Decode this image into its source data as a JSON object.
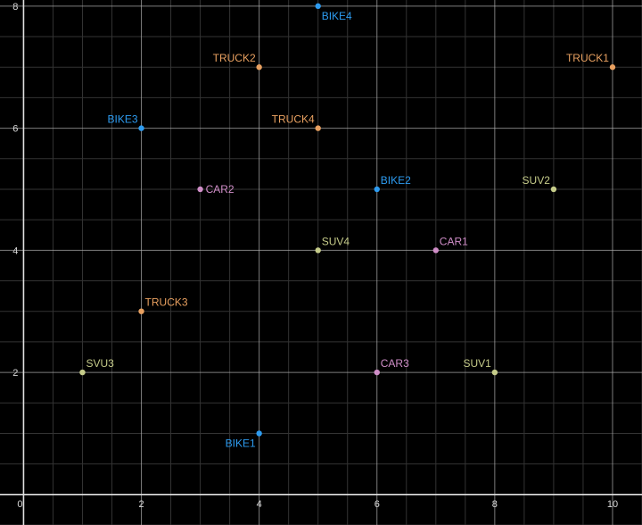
{
  "chart_data": {
    "type": "scatter",
    "title": "",
    "xlabel": "",
    "ylabel": "",
    "xlim": [
      -0.4,
      10.5
    ],
    "ylim": [
      -0.5,
      8.1
    ],
    "grid": true,
    "minor_grid_step": 0.5,
    "x_ticks": [
      "0",
      "2",
      "4",
      "6",
      "8",
      "10"
    ],
    "y_ticks": [
      "2",
      "4",
      "6",
      "8"
    ],
    "background": "#000000",
    "colors": {
      "bike": "#2d9bf0",
      "truck": "#e8a060",
      "car": "#d08ec8",
      "suv": "#c6cc8a",
      "major_grid": "#b0b0b0",
      "minor_grid": "#333333"
    },
    "points": [
      {
        "label": "BIKE4",
        "group": "bike",
        "x": 5,
        "y": 8,
        "anchor": "below-right"
      },
      {
        "label": "TRUCK2",
        "group": "truck",
        "x": 4,
        "y": 7,
        "anchor": "above-left"
      },
      {
        "label": "TRUCK1",
        "group": "truck",
        "x": 10,
        "y": 7,
        "anchor": "above-left"
      },
      {
        "label": "BIKE3",
        "group": "bike",
        "x": 2,
        "y": 6,
        "anchor": "above-left"
      },
      {
        "label": "TRUCK4",
        "group": "truck",
        "x": 5,
        "y": 6,
        "anchor": "above-left"
      },
      {
        "label": "CAR2",
        "group": "car",
        "x": 3,
        "y": 5,
        "anchor": "right"
      },
      {
        "label": "BIKE2",
        "group": "bike",
        "x": 6,
        "y": 5,
        "anchor": "above-right"
      },
      {
        "label": "SUV2",
        "group": "suv",
        "x": 9,
        "y": 5,
        "anchor": "above-left"
      },
      {
        "label": "SUV4",
        "group": "suv",
        "x": 5,
        "y": 4,
        "anchor": "above-right"
      },
      {
        "label": "CAR1",
        "group": "car",
        "x": 7,
        "y": 4,
        "anchor": "above-right"
      },
      {
        "label": "TRUCK3",
        "group": "truck",
        "x": 2,
        "y": 3,
        "anchor": "above-right"
      },
      {
        "label": "SVU3",
        "group": "suv",
        "x": 1,
        "y": 2,
        "anchor": "above-right"
      },
      {
        "label": "CAR3",
        "group": "car",
        "x": 6,
        "y": 2,
        "anchor": "above-right"
      },
      {
        "label": "SUV1",
        "group": "suv",
        "x": 8,
        "y": 2,
        "anchor": "above-left"
      },
      {
        "label": "BIKE1",
        "group": "bike",
        "x": 4,
        "y": 1,
        "anchor": "below-left"
      }
    ]
  }
}
